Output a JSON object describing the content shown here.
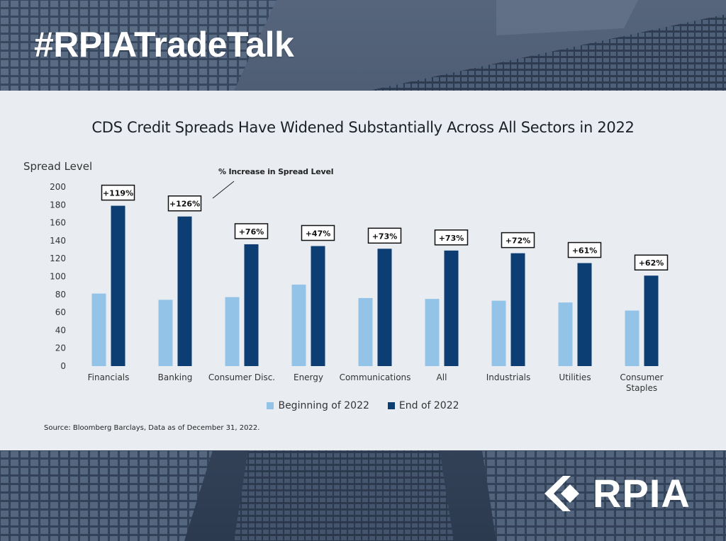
{
  "header": {
    "hashtag": "#RPIATradeTalk"
  },
  "colors": {
    "beginning": "#93c3e6",
    "end": "#0c3d73",
    "panel": "#e9edf2",
    "text": "#1b1f27"
  },
  "chart_data": {
    "type": "bar",
    "title": "CDS Credit Spreads Have Widened Substantially Across All Sectors in 2022",
    "ylabel": "Spread Level",
    "xlabel": "",
    "ylim": [
      0,
      200
    ],
    "yticks": [
      "0",
      "20",
      "40",
      "60",
      "80",
      "100",
      "120",
      "140",
      "160",
      "180",
      "200"
    ],
    "categories": [
      [
        "Financials"
      ],
      [
        "Banking"
      ],
      [
        "Consumer Disc."
      ],
      [
        "Energy"
      ],
      [
        "Communications"
      ],
      [
        "All"
      ],
      [
        "Industrials"
      ],
      [
        "Utilities"
      ],
      [
        "Consumer",
        "Staples"
      ]
    ],
    "series": [
      {
        "name": "Beginning of 2022",
        "values": [
          81,
          74,
          77,
          91,
          76,
          75,
          73,
          71,
          62
        ]
      },
      {
        "name": "End of 2022",
        "values": [
          179,
          167,
          136,
          134,
          131,
          129,
          126,
          115,
          101
        ]
      }
    ],
    "annotations": [
      "+119%",
      "+126%",
      "+76%",
      "+47%",
      "+73%",
      "+73%",
      "+72%",
      "+61%",
      "+62%"
    ],
    "annotation_label": "% Increase in Spread Level",
    "grid": false,
    "legend_position": "bottom"
  },
  "source": "Source: Bloomberg Barclays, Data as of December 31, 2022.",
  "logo": {
    "text": "RPIA"
  }
}
